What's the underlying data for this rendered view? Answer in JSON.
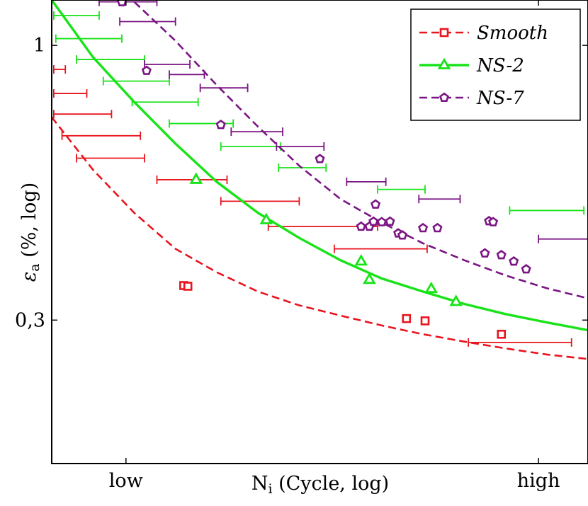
{
  "chart_data": {
    "type": "scatter",
    "x_axis": {
      "label": "Ni (Cycle, log)",
      "label_main": "N",
      "label_sub": "i",
      "label_rest": " (Cycle, log)",
      "tick_labels": [
        "low",
        "high"
      ],
      "scale": "log",
      "xlim": [
        0,
        13
      ]
    },
    "y_axis": {
      "label": "εa (%, log)",
      "label_main": "ε",
      "label_sub": "a",
      "label_rest": " (%, log)",
      "tick_labels": [
        "1",
        "0,3"
      ],
      "tick_values": [
        1,
        0.3
      ],
      "scale": "log",
      "ylim": [
        0.16,
        1.22
      ]
    },
    "legend": {
      "position": "top-right",
      "entries": [
        "Smooth",
        "NS-2",
        "NS-7"
      ]
    },
    "colors": {
      "Smooth": "#e8141e",
      "NS-2": "#18e318",
      "NS-7": "#7a1583"
    },
    "grid": false,
    "series": [
      {
        "name": "Smooth",
        "marker": "square",
        "line_style": "dashed",
        "points": [
          [
            3.2,
            0.349
          ],
          [
            3.3,
            0.348
          ],
          [
            8.6,
            0.302
          ],
          [
            9.05,
            0.299
          ],
          [
            10.9,
            0.282
          ]
        ],
        "fit_curve": [
          [
            0,
            0.73
          ],
          [
            1,
            0.58
          ],
          [
            2,
            0.48
          ],
          [
            3,
            0.41
          ],
          [
            4,
            0.37
          ],
          [
            5,
            0.34
          ],
          [
            6,
            0.32
          ],
          [
            7,
            0.306
          ],
          [
            8,
            0.293
          ],
          [
            9,
            0.282
          ],
          [
            10,
            0.273
          ],
          [
            11,
            0.265
          ],
          [
            12,
            0.258
          ],
          [
            13,
            0.253
          ]
        ],
        "error_bars": [
          [
            0.8,
            0.05,
            0.33,
            0.9
          ],
          [
            1.2,
            0.05,
            0.85,
            0.81
          ],
          [
            1.8,
            0.05,
            1.45,
            0.74
          ],
          [
            2.4,
            0.25,
            2.15,
            0.673
          ],
          [
            3.4,
            0.6,
            2.25,
            0.61
          ],
          [
            4.3,
            2.55,
            4.25,
            0.555
          ],
          [
            4.7,
            4.1,
            6.0,
            0.505
          ],
          [
            6.8,
            5.25,
            7.9,
            0.452
          ],
          [
            8.6,
            6.85,
            9.1,
            0.41
          ],
          [
            10.9,
            10.1,
            12.6,
            0.272
          ]
        ]
      },
      {
        "name": "NS-2",
        "marker": "triangle",
        "line_style": "solid",
        "points": [
          [
            3.5,
            0.555
          ],
          [
            5.2,
            0.465
          ],
          [
            7.5,
            0.388
          ],
          [
            7.7,
            0.358
          ],
          [
            9.2,
            0.344
          ],
          [
            9.8,
            0.325
          ]
        ],
        "fit_curve": [
          [
            0,
            1.22
          ],
          [
            1,
            0.95
          ],
          [
            2,
            0.78
          ],
          [
            3,
            0.65
          ],
          [
            4,
            0.55
          ],
          [
            5,
            0.48
          ],
          [
            6,
            0.43
          ],
          [
            7,
            0.39
          ],
          [
            8,
            0.36
          ],
          [
            9,
            0.34
          ],
          [
            10,
            0.322
          ],
          [
            11,
            0.308
          ],
          [
            12,
            0.297
          ],
          [
            13,
            0.287
          ]
        ],
        "error_bars": [
          [
            0.6,
            0.05,
            1.15,
            1.14
          ],
          [
            1.0,
            0.1,
            1.7,
            1.03
          ],
          [
            1.6,
            0.6,
            2.25,
            0.94
          ],
          [
            2.4,
            1.25,
            2.85,
            0.855
          ],
          [
            3.5,
            1.95,
            3.55,
            0.78
          ],
          [
            4.3,
            2.85,
            4.4,
            0.71
          ],
          [
            5.0,
            4.1,
            5.55,
            0.642
          ],
          [
            6.2,
            5.5,
            6.65,
            0.585
          ],
          [
            9.0,
            7.9,
            9.05,
            0.532
          ],
          [
            12.3,
            11.1,
            12.9,
            0.485
          ]
        ]
      },
      {
        "name": "NS-7",
        "marker": "pentagon",
        "line_style": "dashed",
        "points": [
          [
            1.7,
            1.209
          ],
          [
            2.3,
            0.895
          ],
          [
            4.1,
            0.706
          ],
          [
            6.5,
            0.608
          ],
          [
            7.85,
            0.498
          ],
          [
            7.5,
            0.452
          ],
          [
            7.7,
            0.452
          ],
          [
            7.8,
            0.462
          ],
          [
            8.0,
            0.461
          ],
          [
            8.2,
            0.462
          ],
          [
            8.4,
            0.439
          ],
          [
            8.5,
            0.435
          ],
          [
            9.0,
            0.449
          ],
          [
            9.35,
            0.449
          ],
          [
            10.5,
            0.402
          ],
          [
            10.6,
            0.463
          ],
          [
            10.7,
            0.461
          ],
          [
            10.9,
            0.399
          ],
          [
            11.2,
            0.388
          ],
          [
            11.5,
            0.375
          ]
        ],
        "fit_curve": [
          [
            2,
            1.21
          ],
          [
            3,
            1.02
          ],
          [
            4,
            0.84
          ],
          [
            5,
            0.7
          ],
          [
            6,
            0.59
          ],
          [
            7,
            0.51
          ],
          [
            8,
            0.46
          ],
          [
            9,
            0.42
          ],
          [
            10,
            0.39
          ],
          [
            11,
            0.365
          ],
          [
            12,
            0.345
          ],
          [
            13,
            0.33
          ]
        ],
        "error_bars": [
          [
            1.7,
            1.15,
            2.55,
            1.21
          ],
          [
            2.8,
            1.65,
            3.0,
            1.11
          ],
          [
            3.1,
            2.25,
            3.35,
            0.92
          ],
          [
            4.4,
            2.85,
            3.7,
            0.88
          ],
          [
            5.4,
            3.6,
            4.75,
            0.83
          ],
          [
            7.0,
            4.35,
            5.6,
            0.685
          ],
          [
            8.7,
            5.45,
            6.6,
            0.642
          ],
          [
            9.6,
            7.15,
            8.1,
            0.55
          ],
          [
            11.0,
            8.9,
            9.9,
            0.51
          ],
          [
            12.3,
            11.8,
            13.0,
            0.428
          ]
        ]
      }
    ]
  }
}
